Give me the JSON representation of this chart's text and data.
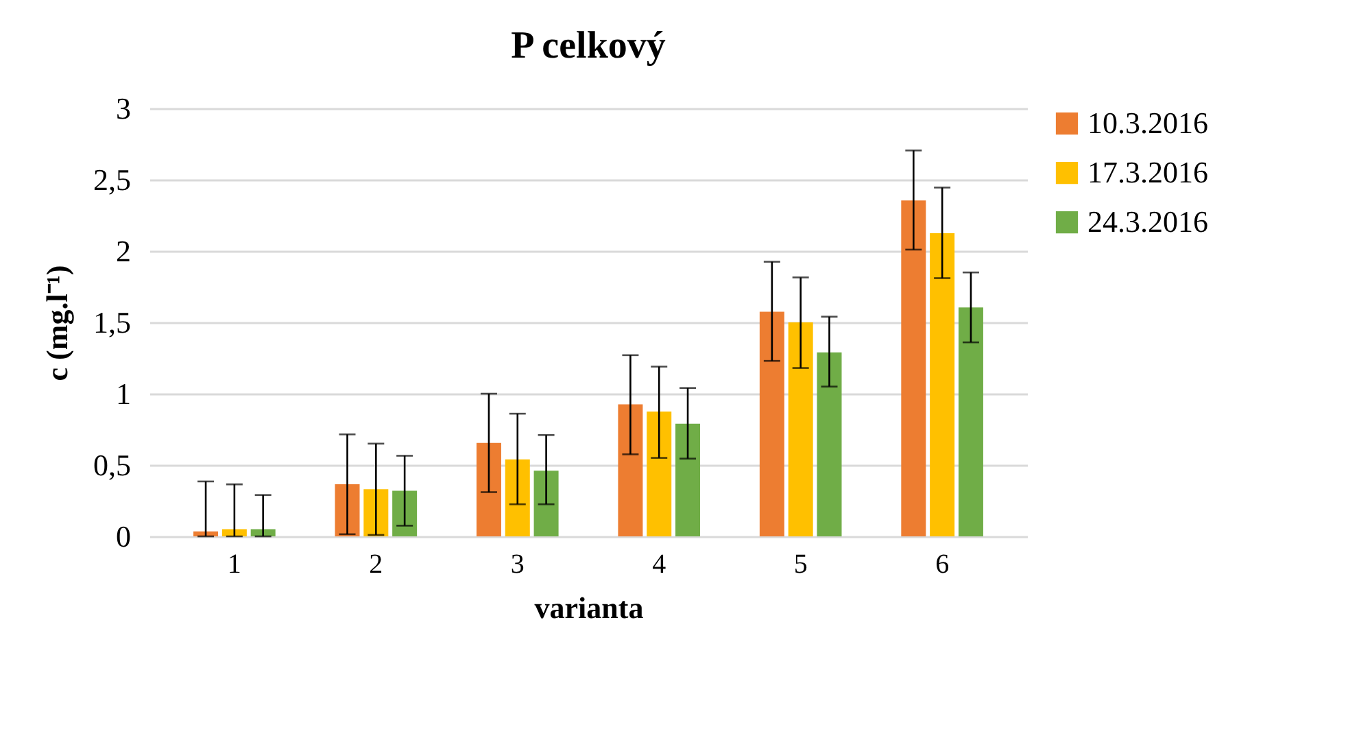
{
  "chart_data": {
    "type": "bar",
    "title": "P celkový",
    "xlabel": "varianta",
    "ylabel": "c (mg.l⁻¹)",
    "categories": [
      "1",
      "2",
      "3",
      "4",
      "5",
      "6"
    ],
    "series": [
      {
        "name": "10.3.2016",
        "color": "#ed7d31",
        "values": [
          0.035,
          0.365,
          0.655,
          0.925,
          1.575,
          2.355
        ],
        "errors": [
          [
            0,
            0.385
          ],
          [
            0.015,
            0.715
          ],
          [
            0.31,
            1.0
          ],
          [
            0.575,
            1.27
          ],
          [
            1.23,
            1.925
          ],
          [
            2.01,
            2.705
          ]
        ]
      },
      {
        "name": "17.3.2016",
        "color": "#ffc000",
        "values": [
          0.05,
          0.33,
          0.54,
          0.875,
          1.5,
          2.125
        ],
        "errors": [
          [
            0,
            0.365
          ],
          [
            0.01,
            0.65
          ],
          [
            0.225,
            0.86
          ],
          [
            0.55,
            1.19
          ],
          [
            1.18,
            1.815
          ],
          [
            1.81,
            2.445
          ]
        ]
      },
      {
        "name": "24.3.2016",
        "color": "#70ad47",
        "values": [
          0.05,
          0.32,
          0.46,
          0.79,
          1.29,
          1.605
        ],
        "errors": [
          [
            0,
            0.29
          ],
          [
            0.075,
            0.565
          ],
          [
            0.225,
            0.71
          ],
          [
            0.545,
            1.04
          ],
          [
            1.05,
            1.54
          ],
          [
            1.36,
            1.85
          ]
        ]
      }
    ],
    "ylim": [
      0,
      3
    ],
    "yticks": [
      0,
      {
        "value": 0.5,
        "label": "0,5"
      },
      1,
      {
        "value": 1.5,
        "label": "1,5"
      },
      2,
      {
        "value": 2.5,
        "label": "2,5"
      },
      3
    ],
    "grid": "y",
    "legend": "right"
  }
}
